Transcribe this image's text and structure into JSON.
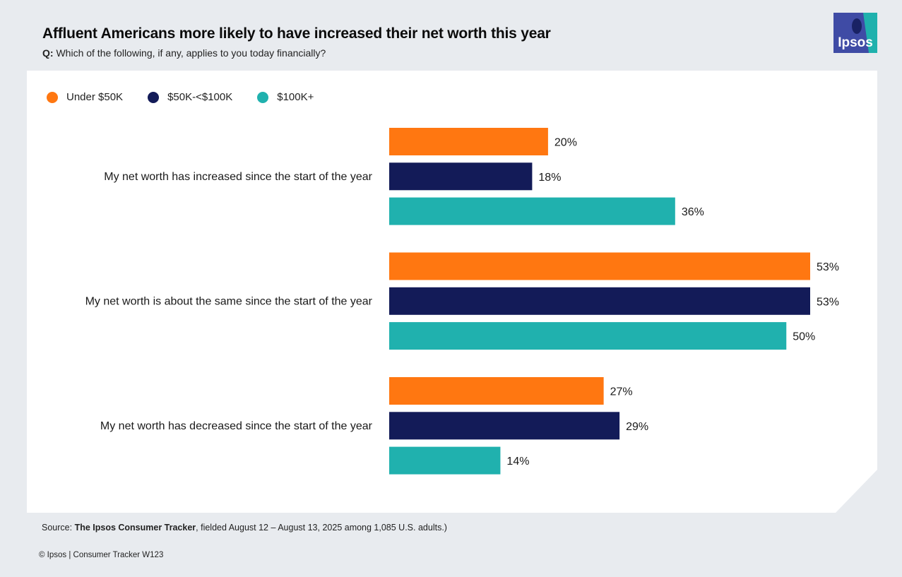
{
  "title": "Affluent Americans more likely to have increased their net worth this year",
  "question": {
    "label": "Q:",
    "text": "Which of the following, if any, applies to you today financially?"
  },
  "logo": {
    "text": "Ipsos",
    "bg_color": "#3f4ba5",
    "accent_color": "#1fb1ad"
  },
  "chart_data": {
    "type": "bar",
    "orientation": "horizontal",
    "title": "Affluent Americans more likely to have increased their net worth this year",
    "categories": [
      "My net worth has increased since the start of the year",
      "My net worth is about the same since the start of the year",
      "My net worth has decreased since the start of the year"
    ],
    "series": [
      {
        "name": "Under $50K",
        "color": "#ff7711",
        "values": [
          20,
          53,
          27
        ]
      },
      {
        "name": "$50K-<$100K",
        "color": "#131b58",
        "values": [
          18,
          53,
          29
        ]
      },
      {
        "name": "$100K+",
        "color": "#20b1ae",
        "values": [
          36,
          50,
          14
        ]
      }
    ],
    "value_suffix": "%",
    "xlim": [
      0,
      53
    ],
    "xlabel": "",
    "ylabel": "",
    "grid": false,
    "legend_position": "top-left"
  },
  "footer": {
    "source_prefix": "Source: ",
    "source_name": "The Ipsos Consumer Tracker",
    "source_rest": ", fielded August 12 – August 13, 2025 among 1,085 U.S. adults.)",
    "copyright": "© Ipsos | Consumer Tracker W123"
  }
}
